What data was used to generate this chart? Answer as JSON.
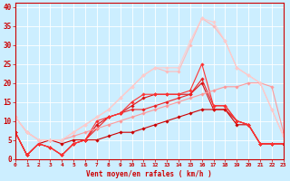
{
  "title": "",
  "xlabel": "Vent moyen/en rafales ( km/h )",
  "ylabel": "",
  "background_color": "#cceeff",
  "grid_color": "#ffffff",
  "x_ticks": [
    0,
    1,
    2,
    3,
    4,
    5,
    6,
    7,
    8,
    9,
    10,
    11,
    12,
    13,
    14,
    15,
    16,
    17,
    18,
    19,
    20,
    21,
    22,
    23
  ],
  "y_ticks": [
    0,
    5,
    10,
    15,
    20,
    25,
    30,
    35,
    40
  ],
  "xlim": [
    0,
    23
  ],
  "ylim": [
    0,
    41
  ],
  "series": [
    {
      "x": [
        0,
        1,
        2,
        3,
        4,
        5,
        6,
        7,
        8,
        9,
        10,
        11,
        12,
        13,
        14,
        15,
        16,
        17,
        18,
        19,
        20,
        21,
        22,
        23
      ],
      "y": [
        7,
        1,
        4,
        5,
        4,
        5,
        5,
        5,
        6,
        7,
        7,
        8,
        9,
        10,
        11,
        12,
        13,
        13,
        13,
        9,
        9,
        4,
        4,
        4
      ],
      "color": "#cc0000",
      "linewidth": 0.8,
      "marker": "D",
      "markersize": 1.8
    },
    {
      "x": [
        0,
        1,
        2,
        3,
        4,
        5,
        6,
        7,
        8,
        9,
        10,
        11,
        12,
        13,
        14,
        15,
        16,
        17,
        18,
        19,
        20,
        21,
        22,
        23
      ],
      "y": [
        7,
        1,
        4,
        3,
        1,
        4,
        5,
        9,
        11,
        12,
        14,
        16,
        17,
        17,
        17,
        17,
        20,
        13,
        13,
        10,
        9,
        4,
        4,
        4
      ],
      "color": "#dd1111",
      "linewidth": 0.8,
      "marker": "D",
      "markersize": 1.8
    },
    {
      "x": [
        0,
        1,
        2,
        3,
        4,
        5,
        6,
        7,
        8,
        9,
        10,
        11,
        12,
        13,
        14,
        15,
        16,
        17,
        18,
        19,
        20,
        21,
        22,
        23
      ],
      "y": [
        7,
        1,
        4,
        3,
        1,
        4,
        5,
        8,
        11,
        12,
        13,
        13,
        14,
        15,
        16,
        17,
        21,
        14,
        14,
        10,
        9,
        4,
        4,
        4
      ],
      "color": "#ee2222",
      "linewidth": 0.8,
      "marker": "D",
      "markersize": 1.8
    },
    {
      "x": [
        0,
        1,
        2,
        3,
        4,
        5,
        6,
        7,
        8,
        9,
        10,
        11,
        12,
        13,
        14,
        15,
        16,
        17,
        18,
        19,
        20,
        21,
        22,
        23
      ],
      "y": [
        7,
        1,
        4,
        3,
        1,
        4,
        5,
        10,
        11,
        12,
        15,
        17,
        17,
        17,
        17,
        18,
        25,
        14,
        14,
        10,
        9,
        4,
        4,
        4
      ],
      "color": "#ff3333",
      "linewidth": 0.8,
      "marker": "D",
      "markersize": 1.8
    },
    {
      "x": [
        0,
        1,
        2,
        3,
        4,
        5,
        6,
        7,
        8,
        9,
        10,
        11,
        12,
        13,
        14,
        15,
        16,
        17,
        18,
        19,
        20,
        21,
        22,
        23
      ],
      "y": [
        11,
        7,
        5,
        5,
        5,
        6,
        7,
        8,
        9,
        10,
        11,
        12,
        13,
        14,
        15,
        16,
        17,
        18,
        19,
        19,
        20,
        20,
        19,
        7
      ],
      "color": "#ff9999",
      "linewidth": 0.8,
      "marker": "D",
      "markersize": 1.8
    },
    {
      "x": [
        0,
        1,
        2,
        3,
        4,
        5,
        6,
        7,
        8,
        9,
        10,
        11,
        12,
        13,
        14,
        15,
        16,
        17,
        18,
        19,
        20,
        21,
        22,
        23
      ],
      "y": [
        11,
        7,
        5,
        5,
        5,
        7,
        9,
        11,
        13,
        16,
        19,
        22,
        24,
        23,
        23,
        30,
        37,
        35,
        31,
        24,
        22,
        20,
        13,
        6
      ],
      "color": "#ffbbbb",
      "linewidth": 0.8,
      "marker": "D",
      "markersize": 1.8
    },
    {
      "x": [
        0,
        1,
        2,
        3,
        4,
        5,
        6,
        7,
        8,
        9,
        10,
        11,
        12,
        13,
        14,
        15,
        16,
        17,
        18,
        19,
        20,
        21,
        22,
        23
      ],
      "y": [
        11,
        7,
        5,
        5,
        5,
        7,
        9,
        11,
        13,
        16,
        19,
        22,
        24,
        24,
        24,
        31,
        37,
        36,
        31,
        24,
        22,
        20,
        13,
        6
      ],
      "color": "#ffcccc",
      "linewidth": 0.8,
      "marker": "D",
      "markersize": 1.8
    }
  ]
}
